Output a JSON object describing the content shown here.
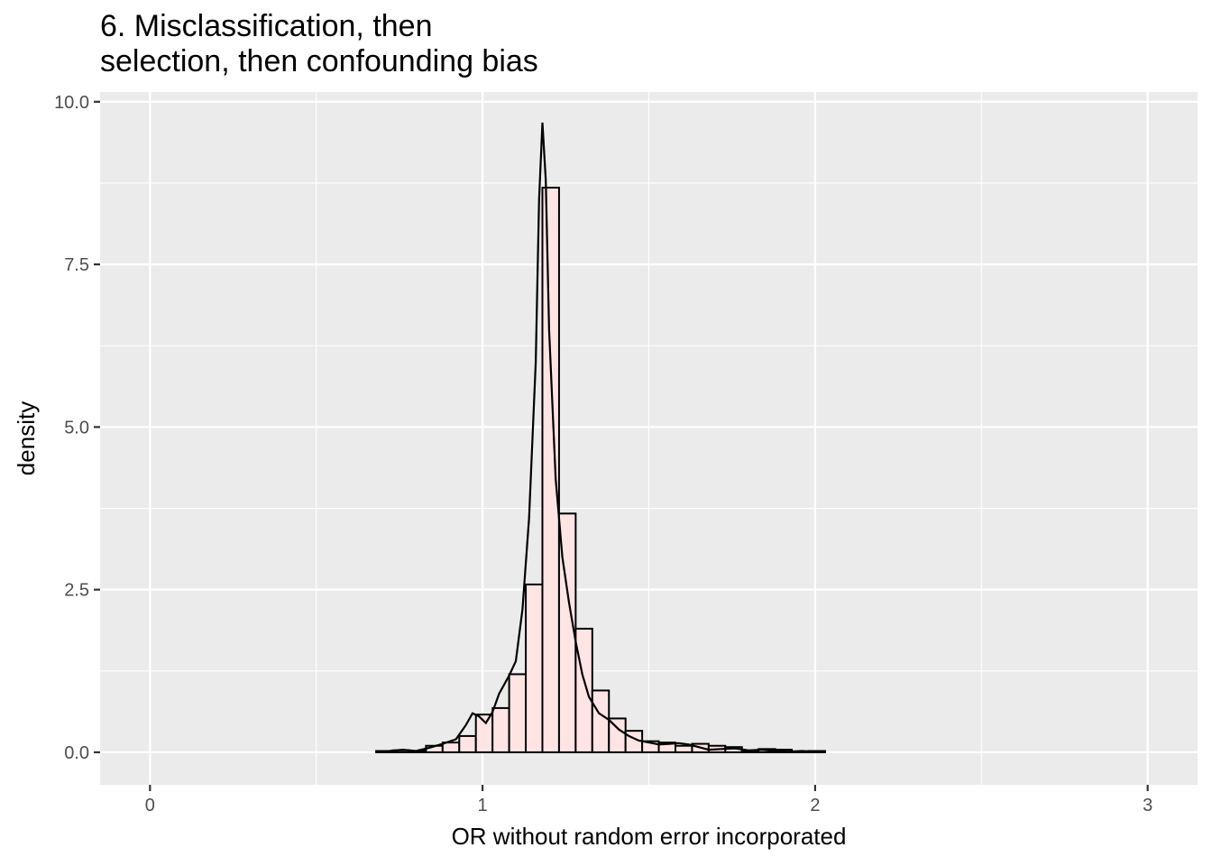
{
  "chart_data": {
    "type": "bar",
    "title_lines": [
      "6. Misclassification, then",
      "selection, then confounding bias"
    ],
    "xlabel": "OR without random error incorporated",
    "ylabel": "density",
    "xlim": [
      -0.15,
      3.15
    ],
    "ylim": [
      -0.5,
      10.15
    ],
    "x_ticks": [
      {
        "value": 0,
        "label": "0"
      },
      {
        "value": 1,
        "label": "1"
      },
      {
        "value": 2,
        "label": "2"
      },
      {
        "value": 3,
        "label": "3"
      }
    ],
    "y_ticks": [
      {
        "value": 0,
        "label": "0.0"
      },
      {
        "value": 2.5,
        "label": "2.5"
      },
      {
        "value": 5,
        "label": "5.0"
      },
      {
        "value": 7.5,
        "label": "7.5"
      },
      {
        "value": 10,
        "label": "10.0"
      }
    ],
    "grid": true,
    "panel_color": "#ebebeb",
    "grid_color": "#ffffff",
    "bar_fill": "#ffe4e4",
    "outline_color": "#000000",
    "bin_width": 0.05,
    "bins": [
      {
        "start": 0.68,
        "density": 0.02
      },
      {
        "start": 0.73,
        "density": 0.03
      },
      {
        "start": 0.78,
        "density": 0.02
      },
      {
        "start": 0.83,
        "density": 0.1
      },
      {
        "start": 0.88,
        "density": 0.15
      },
      {
        "start": 0.93,
        "density": 0.25
      },
      {
        "start": 0.98,
        "density": 0.58
      },
      {
        "start": 1.03,
        "density": 0.68
      },
      {
        "start": 1.08,
        "density": 1.2
      },
      {
        "start": 1.13,
        "density": 2.58
      },
      {
        "start": 1.18,
        "density": 8.68
      },
      {
        "start": 1.23,
        "density": 3.67
      },
      {
        "start": 1.28,
        "density": 1.9
      },
      {
        "start": 1.33,
        "density": 0.95
      },
      {
        "start": 1.38,
        "density": 0.52
      },
      {
        "start": 1.43,
        "density": 0.33
      },
      {
        "start": 1.48,
        "density": 0.17
      },
      {
        "start": 1.53,
        "density": 0.15
      },
      {
        "start": 1.58,
        "density": 0.1
      },
      {
        "start": 1.63,
        "density": 0.13
      },
      {
        "start": 1.68,
        "density": 0.1
      },
      {
        "start": 1.73,
        "density": 0.08
      },
      {
        "start": 1.78,
        "density": 0.02
      },
      {
        "start": 1.83,
        "density": 0.05
      },
      {
        "start": 1.88,
        "density": 0.04
      },
      {
        "start": 1.93,
        "density": 0.01
      },
      {
        "start": 1.98,
        "density": 0.02
      }
    ],
    "density_curve": [
      [
        0.68,
        0.01
      ],
      [
        0.72,
        0.02
      ],
      [
        0.76,
        0.04
      ],
      [
        0.8,
        0.02
      ],
      [
        0.84,
        0.07
      ],
      [
        0.88,
        0.13
      ],
      [
        0.92,
        0.2
      ],
      [
        0.95,
        0.42
      ],
      [
        0.97,
        0.6
      ],
      [
        0.99,
        0.55
      ],
      [
        1.01,
        0.45
      ],
      [
        1.03,
        0.62
      ],
      [
        1.05,
        0.9
      ],
      [
        1.08,
        1.18
      ],
      [
        1.1,
        1.4
      ],
      [
        1.12,
        2.2
      ],
      [
        1.14,
        3.6
      ],
      [
        1.16,
        6.0
      ],
      [
        1.17,
        8.5
      ],
      [
        1.18,
        9.68
      ],
      [
        1.19,
        8.8
      ],
      [
        1.2,
        6.5
      ],
      [
        1.22,
        4.2
      ],
      [
        1.24,
        3.0
      ],
      [
        1.26,
        2.3
      ],
      [
        1.28,
        1.7
      ],
      [
        1.3,
        1.2
      ],
      [
        1.32,
        0.85
      ],
      [
        1.35,
        0.6
      ],
      [
        1.38,
        0.5
      ],
      [
        1.41,
        0.35
      ],
      [
        1.44,
        0.25
      ],
      [
        1.47,
        0.18
      ],
      [
        1.5,
        0.15
      ],
      [
        1.53,
        0.12
      ],
      [
        1.56,
        0.13
      ],
      [
        1.59,
        0.14
      ],
      [
        1.62,
        0.12
      ],
      [
        1.65,
        0.08
      ],
      [
        1.68,
        0.04
      ],
      [
        1.72,
        0.05
      ],
      [
        1.76,
        0.06
      ],
      [
        1.8,
        0.03
      ],
      [
        1.84,
        0.04
      ],
      [
        1.88,
        0.02
      ],
      [
        1.92,
        0.01
      ],
      [
        1.96,
        0.02
      ],
      [
        2.0,
        0.01
      ]
    ]
  }
}
